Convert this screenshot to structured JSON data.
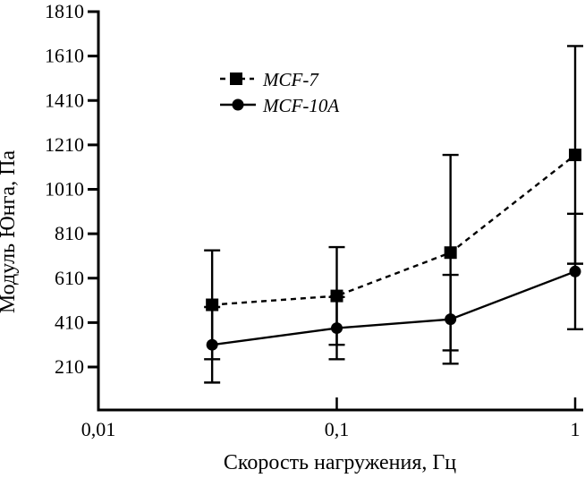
{
  "figure": {
    "y_axis_label": "Модуль Юнга, Па",
    "x_axis_label": "Скорость нагружения, Гц"
  },
  "chart_data": {
    "type": "line",
    "x_scale": "log",
    "grid": false,
    "legend_position": "inside-top-left",
    "x": [
      0.03,
      0.1,
      0.3,
      1
    ],
    "x_ticks": [
      {
        "value": 0.01,
        "label": "0,01"
      },
      {
        "value": 0.1,
        "label": "0,1"
      },
      {
        "value": 1,
        "label": "1"
      }
    ],
    "y_ticks": [
      210,
      410,
      610,
      810,
      1010,
      1210,
      1410,
      1610,
      1810
    ],
    "ylim": [
      130,
      1810
    ],
    "xlabel": "Скорость нагружения, Гц",
    "ylabel": "Модуль Юнга, Па",
    "series": [
      {
        "name": "MCF-7",
        "marker": "square",
        "line": "dashed",
        "values": [
          490,
          530,
          725,
          1165
        ],
        "errors": [
          245,
          220,
          440,
          490
        ]
      },
      {
        "name": "MCF-10A",
        "marker": "circle",
        "line": "solid",
        "values": [
          310,
          385,
          425,
          640
        ],
        "errors": [
          170,
          140,
          200,
          260
        ]
      }
    ]
  }
}
